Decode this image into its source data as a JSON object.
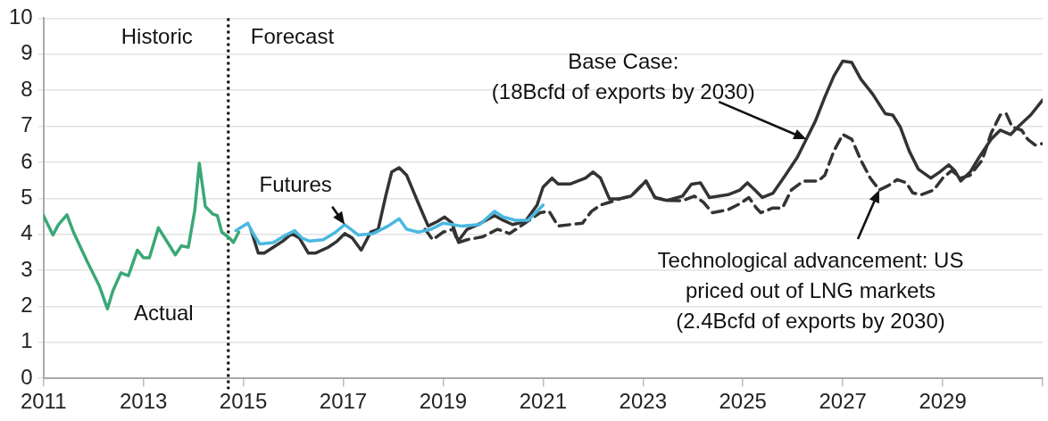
{
  "chart_data": {
    "type": "line",
    "xlim": [
      2011,
      2031
    ],
    "xticks": [
      2011,
      2013,
      2015,
      2017,
      2019,
      2021,
      2023,
      2025,
      2027,
      2029,
      {
        "value": 2031,
        "label": null
      }
    ],
    "ylim": [
      0,
      10
    ],
    "yticks": [
      0,
      1,
      2,
      3,
      4,
      5,
      6,
      7,
      8,
      9,
      10
    ],
    "grid": "y",
    "legend": false,
    "series": [
      {
        "name": "Actual",
        "color": "#3aa876",
        "line_style": "solid",
        "x": [
          2011.0,
          2011.19,
          2011.3,
          2011.47,
          2011.6,
          2011.88,
          2012.12,
          2012.28,
          2012.39,
          2012.55,
          2012.7,
          2012.88,
          2013.0,
          2013.12,
          2013.3,
          2013.64,
          2013.76,
          2013.9,
          2014.03,
          2014.12,
          2014.24,
          2014.39,
          2014.48,
          2014.57,
          2014.73,
          2014.8,
          2014.91
        ],
        "values": [
          4.52,
          3.98,
          4.27,
          4.54,
          4.06,
          3.23,
          2.56,
          1.93,
          2.43,
          2.93,
          2.85,
          3.56,
          3.35,
          3.35,
          4.18,
          3.43,
          3.68,
          3.64,
          4.68,
          5.97,
          4.77,
          4.56,
          4.52,
          4.06,
          3.89,
          3.77,
          4.06
        ]
      },
      {
        "name": "Futures",
        "color": "#4ab8e0",
        "line_style": "solid",
        "x": [
          2014.85,
          2015.09,
          2015.18,
          2015.33,
          2015.6,
          2015.85,
          2016.03,
          2016.18,
          2016.33,
          2016.6,
          2016.85,
          2017.03,
          2017.3,
          2017.6,
          2017.9,
          2018.12,
          2018.27,
          2018.5,
          2018.76,
          2019.0,
          2019.36,
          2019.73,
          2020.03,
          2020.2,
          2020.45,
          2020.7,
          2021.0
        ],
        "values": [
          4.1,
          4.31,
          4.06,
          3.73,
          3.77,
          3.98,
          4.1,
          3.89,
          3.81,
          3.85,
          4.06,
          4.27,
          3.98,
          4.02,
          4.23,
          4.43,
          4.14,
          4.06,
          4.14,
          4.31,
          4.23,
          4.27,
          4.64,
          4.48,
          4.39,
          4.39,
          4.81
        ]
      },
      {
        "color": "#333333",
        "line_style": "solid",
        "x": [
          2015.15,
          2015.3,
          2015.42,
          2015.6,
          2015.79,
          2015.97,
          2016.12,
          2016.3,
          2016.45,
          2016.7,
          2016.88,
          2017.03,
          2017.18,
          2017.36,
          2017.55,
          2017.7,
          2017.85,
          2017.97,
          2018.12,
          2018.27,
          2018.42,
          2018.52,
          2018.7,
          2018.88,
          2019.03,
          2019.18,
          2019.3,
          2019.48,
          2019.7,
          2020.03,
          2020.2,
          2020.39,
          2020.64,
          2020.88,
          2021.0,
          2021.18,
          2021.3,
          2021.55,
          2021.85,
          2022.0,
          2022.15,
          2022.33,
          2022.52,
          2022.76,
          2023.06,
          2023.24,
          2023.48,
          2023.79,
          2023.97,
          2024.15,
          2024.33,
          2024.7,
          2024.94,
          2025.09,
          2025.24,
          2025.39,
          2025.6,
          2025.85,
          2026.09,
          2026.27,
          2026.45,
          2026.64,
          2026.82,
          2027.0,
          2027.18,
          2027.36,
          2027.6,
          2027.85,
          2028.0,
          2028.15,
          2028.33,
          2028.51,
          2028.76,
          2028.94,
          2029.12,
          2029.24,
          2029.36,
          2029.55,
          2029.73,
          2029.97,
          2030.15,
          2030.36,
          2030.52,
          2030.76,
          2031.0
        ],
        "values": [
          4.14,
          3.48,
          3.48,
          3.64,
          3.81,
          4.02,
          3.9,
          3.48,
          3.48,
          3.64,
          3.81,
          4.02,
          3.9,
          3.56,
          4.06,
          4.14,
          5.06,
          5.73,
          5.85,
          5.64,
          5.14,
          4.81,
          4.23,
          4.35,
          4.48,
          4.31,
          3.81,
          4.14,
          4.27,
          4.52,
          4.39,
          4.27,
          4.35,
          4.81,
          5.31,
          5.56,
          5.4,
          5.4,
          5.56,
          5.73,
          5.56,
          4.98,
          4.98,
          5.06,
          5.48,
          5.02,
          4.94,
          5.06,
          5.39,
          5.43,
          5.02,
          5.1,
          5.23,
          5.43,
          5.23,
          5.02,
          5.14,
          5.64,
          6.14,
          6.64,
          7.14,
          7.81,
          8.39,
          8.81,
          8.77,
          8.31,
          7.89,
          7.35,
          7.31,
          6.98,
          6.31,
          5.81,
          5.56,
          5.73,
          5.93,
          5.77,
          5.48,
          5.73,
          6.14,
          6.64,
          6.89,
          6.77,
          7.0,
          7.31,
          7.73
        ]
      },
      {
        "color": "#333333",
        "line_style": "dashed",
        "x": [
          2018.64,
          2018.79,
          2019.0,
          2019.2,
          2019.3,
          2019.48,
          2019.79,
          2020.09,
          2020.33,
          2020.64,
          2020.94,
          2021.12,
          2021.3,
          2021.55,
          2021.79,
          2021.97,
          2022.15,
          2022.33,
          2022.52,
          2022.76,
          2023.06,
          2023.24,
          2023.48,
          2023.79,
          2024.03,
          2024.21,
          2024.39,
          2024.7,
          2024.94,
          2025.12,
          2025.27,
          2025.36,
          2025.6,
          2025.79,
          2025.97,
          2026.21,
          2026.51,
          2026.64,
          2026.82,
          2027.0,
          2027.18,
          2027.36,
          2027.55,
          2027.73,
          2027.91,
          2028.09,
          2028.27,
          2028.4,
          2028.57,
          2028.82,
          2029.0,
          2029.18,
          2029.36,
          2029.55,
          2029.79,
          2029.97,
          2030.15,
          2030.27,
          2030.39,
          2030.58,
          2030.7,
          2030.85,
          2031.0
        ],
        "values": [
          4.14,
          3.85,
          4.06,
          4.14,
          3.77,
          3.85,
          3.93,
          4.14,
          4.02,
          4.31,
          4.6,
          4.64,
          4.23,
          4.27,
          4.31,
          4.64,
          4.81,
          4.89,
          4.98,
          5.06,
          5.48,
          5.02,
          4.94,
          4.93,
          5.06,
          4.89,
          4.6,
          4.68,
          4.85,
          5.02,
          4.73,
          4.6,
          4.73,
          4.73,
          5.23,
          5.48,
          5.48,
          5.64,
          6.31,
          6.77,
          6.64,
          6.06,
          5.56,
          5.23,
          5.35,
          5.52,
          5.43,
          5.15,
          5.1,
          5.23,
          5.56,
          5.77,
          5.56,
          5.64,
          6.06,
          6.81,
          7.31,
          7.35,
          6.98,
          6.89,
          6.64,
          6.48,
          6.52
        ]
      }
    ],
    "ref_lines": [
      {
        "axis": "x",
        "value": 2014.7,
        "label": null,
        "color": "#000000",
        "line_style": "dotted"
      }
    ],
    "annotations": [
      "Historic",
      "Forecast",
      {
        "text": "Base Case:\n(18Bcfd of exports by 2030)",
        "x": 2026.27,
        "y": 6.64
      },
      {
        "text": "Technological advancement: US\npriced out of LNG markets\n(2.4Bcfd of exports by 2030)",
        "x": 2027.73,
        "y": 5.23
      }
    ]
  }
}
